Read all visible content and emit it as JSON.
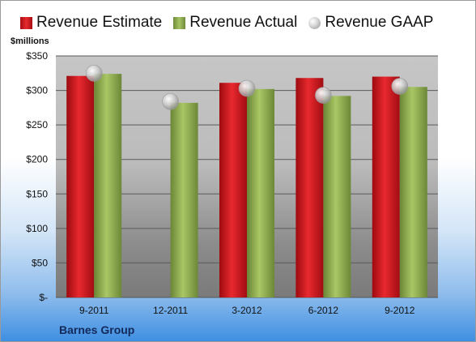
{
  "legend": {
    "estimate": "Revenue Estimate",
    "actual": "Revenue Actual",
    "gaap": "Revenue GAAP"
  },
  "unit_label": "$millions",
  "company": "Barnes Group",
  "colors": {
    "estimate": "#d81e25",
    "actual": "#8fae52",
    "gaap": "#c8c8c8"
  },
  "chart_data": {
    "type": "bar",
    "categories": [
      "9-2011",
      "12-2011",
      "3-2012",
      "6-2012",
      "9-2012"
    ],
    "series": [
      {
        "name": "Revenue Estimate",
        "values": [
          321,
          null,
          311,
          318,
          320
        ]
      },
      {
        "name": "Revenue Actual",
        "values": [
          324,
          282,
          302,
          292,
          305
        ]
      },
      {
        "name": "Revenue GAAP",
        "marker": "circle",
        "values": [
          325,
          284,
          303,
          293,
          306
        ]
      }
    ],
    "yticks": [
      "$-",
      "$50",
      "$100",
      "$150",
      "$200",
      "$250",
      "$300",
      "$350"
    ],
    "ylabel": "$millions",
    "ylim": [
      0,
      350
    ],
    "grid": true,
    "legend": "top"
  }
}
